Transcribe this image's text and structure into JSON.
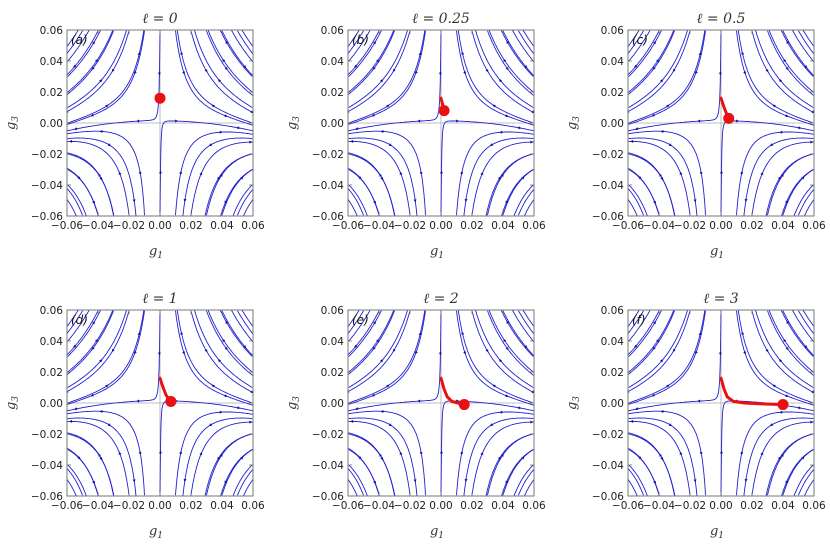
{
  "colors": {
    "stream": "#2020d0",
    "arrow": "#1010a0",
    "path": "#e81010",
    "frame": "#777777",
    "axis_line": "#aaaaaa"
  },
  "chart_data": [
    {
      "type": "streamplot",
      "panel_label": "(a)",
      "title": "ℓ = 0",
      "xlabel": "g1",
      "ylabel": "g3",
      "xlim": [
        -0.06,
        0.06
      ],
      "ylim": [
        -0.06,
        0.06
      ],
      "xticks": [
        "−0.06",
        "−0.04",
        "−0.02",
        "0.00",
        "0.02",
        "0.04",
        "0.06"
      ],
      "yticks": [
        "0.06",
        "0.04",
        "0.02",
        "0.00",
        "−0.02",
        "−0.04",
        "−0.06"
      ],
      "marker": {
        "x": 0.0,
        "y": 0.016
      },
      "path": [
        [
          0.0,
          0.016
        ]
      ]
    },
    {
      "type": "streamplot",
      "panel_label": "(b)",
      "title": "ℓ = 0.25",
      "xlabel": "g1",
      "ylabel": "g3",
      "xlim": [
        -0.06,
        0.06
      ],
      "ylim": [
        -0.06,
        0.06
      ],
      "xticks": [
        "−0.06",
        "−0.04",
        "−0.02",
        "0.00",
        "0.02",
        "0.04",
        "0.06"
      ],
      "yticks": [
        "0.06",
        "0.04",
        "0.02",
        "0.00",
        "−0.02",
        "−0.04",
        "−0.06"
      ],
      "marker": {
        "x": 0.002,
        "y": 0.008
      },
      "path": [
        [
          0.0,
          0.016
        ],
        [
          0.001,
          0.012
        ],
        [
          0.002,
          0.008
        ]
      ]
    },
    {
      "type": "streamplot",
      "panel_label": "(c)",
      "title": "ℓ = 0.5",
      "xlabel": "g1",
      "ylabel": "g3",
      "xlim": [
        -0.06,
        0.06
      ],
      "ylim": [
        -0.06,
        0.06
      ],
      "xticks": [
        "−0.06",
        "−0.04",
        "−0.02",
        "0.00",
        "0.02",
        "0.04",
        "0.06"
      ],
      "yticks": [
        "0.06",
        "0.04",
        "0.02",
        "0.00",
        "−0.02",
        "−0.04",
        "−0.06"
      ],
      "marker": {
        "x": 0.005,
        "y": 0.003
      },
      "path": [
        [
          0.0,
          0.016
        ],
        [
          0.002,
          0.01
        ],
        [
          0.004,
          0.005
        ],
        [
          0.005,
          0.003
        ]
      ]
    },
    {
      "type": "streamplot",
      "panel_label": "(d)",
      "title": "ℓ = 1",
      "xlabel": "g1",
      "ylabel": "g3",
      "xlim": [
        -0.06,
        0.06
      ],
      "ylim": [
        -0.06,
        0.06
      ],
      "xticks": [
        "−0.06",
        "−0.04",
        "−0.02",
        "0.00",
        "0.02",
        "0.04",
        "0.06"
      ],
      "yticks": [
        "0.06",
        "0.04",
        "0.02",
        "0.00",
        "−0.02",
        "−0.04",
        "−0.06"
      ],
      "marker": {
        "x": 0.007,
        "y": 0.001
      },
      "path": [
        [
          0.0,
          0.016
        ],
        [
          0.002,
          0.01
        ],
        [
          0.004,
          0.005
        ],
        [
          0.006,
          0.002
        ],
        [
          0.007,
          0.001
        ]
      ]
    },
    {
      "type": "streamplot",
      "panel_label": "(e)",
      "title": "ℓ = 2",
      "xlabel": "g1",
      "ylabel": "g3",
      "xlim": [
        -0.06,
        0.06
      ],
      "ylim": [
        -0.06,
        0.06
      ],
      "xticks": [
        "−0.06",
        "−0.04",
        "−0.02",
        "0.00",
        "0.02",
        "0.04",
        "0.06"
      ],
      "yticks": [
        "0.06",
        "0.04",
        "0.02",
        "0.00",
        "−0.02",
        "−0.04",
        "−0.06"
      ],
      "marker": {
        "x": 0.015,
        "y": -0.001
      },
      "path": [
        [
          0.0,
          0.016
        ],
        [
          0.002,
          0.009
        ],
        [
          0.004,
          0.004
        ],
        [
          0.007,
          0.001
        ],
        [
          0.011,
          0.0
        ],
        [
          0.015,
          -0.001
        ]
      ]
    },
    {
      "type": "streamplot",
      "panel_label": "(f)",
      "title": "ℓ = 3",
      "xlabel": "g1",
      "ylabel": "g3",
      "xlim": [
        -0.06,
        0.06
      ],
      "ylim": [
        -0.06,
        0.06
      ],
      "xticks": [
        "−0.06",
        "−0.04",
        "−0.02",
        "0.00",
        "0.02",
        "0.04",
        "0.06"
      ],
      "yticks": [
        "0.06",
        "0.04",
        "0.02",
        "0.00",
        "−0.02",
        "−0.04",
        "−0.06"
      ],
      "marker": {
        "x": 0.04,
        "y": -0.001
      },
      "path": [
        [
          0.0,
          0.016
        ],
        [
          0.002,
          0.009
        ],
        [
          0.004,
          0.004
        ],
        [
          0.008,
          0.001
        ],
        [
          0.015,
          0.0
        ],
        [
          0.025,
          -0.0005
        ],
        [
          0.04,
          -0.001
        ]
      ]
    }
  ]
}
